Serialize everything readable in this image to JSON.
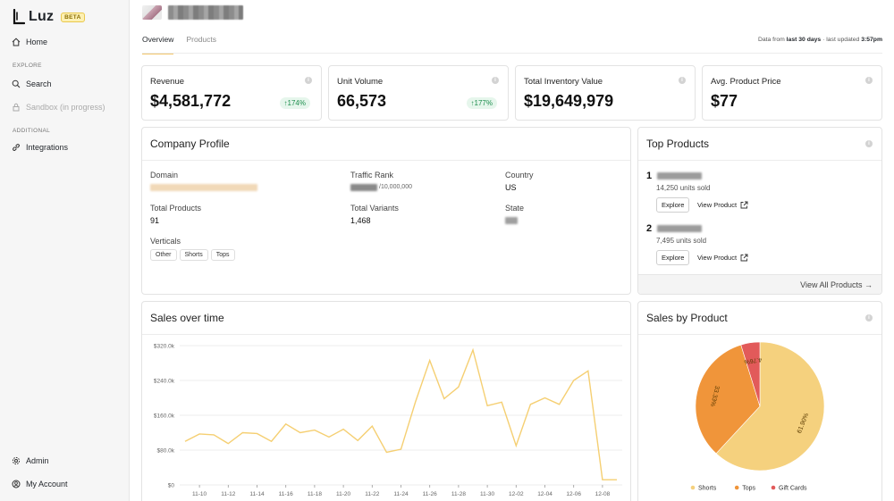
{
  "sidebar": {
    "logo": "Luz",
    "beta": "BETA",
    "home": "Home",
    "explore_section": "EXPLORE",
    "search": "Search",
    "sandbox": "Sandbox (in progress)",
    "additional_section": "ADDITIONAL",
    "integrations": "Integrations",
    "admin": "Admin",
    "my_account": "My Account"
  },
  "header": {
    "tabs": [
      "Overview",
      "Products"
    ],
    "data_prefix": "Data from ",
    "data_range": "last 30 days",
    "data_mid": " · last updated ",
    "data_time": "3:57pm"
  },
  "metrics": [
    {
      "label": "Revenue",
      "value": "$4,581,772",
      "badge": "↑174%"
    },
    {
      "label": "Unit Volume",
      "value": "66,573",
      "badge": "↑177%"
    },
    {
      "label": "Total Inventory Value",
      "value": "$19,649,979"
    },
    {
      "label": "Avg. Product Price",
      "value": "$77"
    }
  ],
  "profile": {
    "title": "Company Profile",
    "domain_label": "Domain",
    "traffic_label": "Traffic Rank",
    "traffic_suffix": "/10,000,000",
    "country_label": "Country",
    "country_value": "US",
    "total_products_label": "Total Products",
    "total_products_value": "91",
    "total_variants_label": "Total Variants",
    "total_variants_value": "1,468",
    "state_label": "State",
    "verticals_label": "Verticals",
    "verticals": [
      "Other",
      "Shorts",
      "Tops"
    ]
  },
  "top_products": {
    "title": "Top Products",
    "items": [
      {
        "rank": "1",
        "units": "14,250 units sold",
        "explore": "Explore",
        "view": "View Product"
      },
      {
        "rank": "2",
        "units": "7,495 units sold",
        "explore": "Explore",
        "view": "View Product"
      }
    ],
    "view_all": "View All Products →"
  },
  "sales_over_time": {
    "title": "Sales over time",
    "chart_data": {
      "type": "line",
      "color": "#f5cf72",
      "x": [
        "11-09",
        "11-10",
        "11-11",
        "11-12",
        "11-13",
        "11-14",
        "11-15",
        "11-16",
        "11-17",
        "11-18",
        "11-19",
        "11-20",
        "11-21",
        "11-22",
        "11-23",
        "11-24",
        "11-25",
        "11-26",
        "11-27",
        "11-28",
        "11-29",
        "11-30",
        "12-01",
        "12-02",
        "12-03",
        "12-04",
        "12-05",
        "12-06",
        "12-07",
        "12-08",
        "12-09"
      ],
      "y": [
        100000,
        117000,
        115000,
        95000,
        120000,
        118000,
        100000,
        140000,
        120000,
        126000,
        110000,
        128000,
        102000,
        135000,
        75000,
        82000,
        190000,
        286000,
        198000,
        225000,
        310000,
        182000,
        190000,
        90000,
        185000,
        200000,
        185000,
        240000,
        262000,
        12000,
        12000
      ],
      "x_ticks": [
        "11-10",
        "11-12",
        "11-14",
        "11-16",
        "11-18",
        "11-20",
        "11-22",
        "11-24",
        "11-26",
        "11-28",
        "11-30",
        "12-02",
        "12-04",
        "12-06",
        "12-08"
      ],
      "y_ticks": [
        "$0",
        "$80.0k",
        "$160.0k",
        "$240.0k",
        "$320.0k"
      ],
      "ylim": [
        0,
        320000
      ],
      "grid": true
    }
  },
  "sales_by_product": {
    "title": "Sales by Product",
    "chart_data": {
      "type": "pie",
      "slices": [
        {
          "name": "Shorts",
          "value": 61.9,
          "label": "61.90%",
          "color": "#f5d17e"
        },
        {
          "name": "Tops",
          "value": 33.33,
          "label": "33.33%",
          "color": "#f0953a"
        },
        {
          "name": "Gift Cards",
          "value": 4.76,
          "label": "4.76%",
          "color": "#e25a5a"
        }
      ],
      "legend": "bottom"
    }
  }
}
